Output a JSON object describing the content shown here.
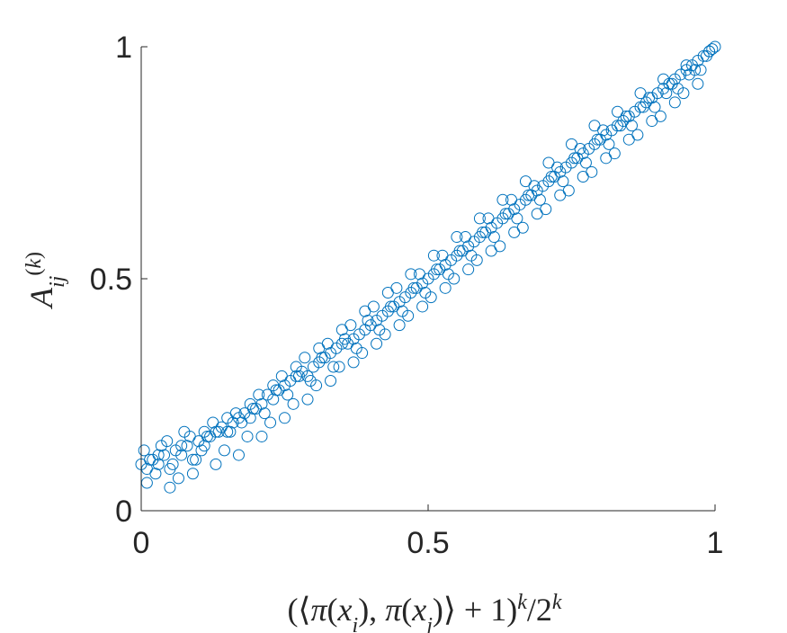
{
  "chart_data": {
    "type": "scatter",
    "title": "",
    "xlabel": "(⟨π(x_i), π(x_j)⟩ + 1)^k / 2^k",
    "ylabel": "A_ij^(k)",
    "xlim": [
      0,
      1
    ],
    "ylim": [
      0,
      1
    ],
    "xticks": [
      0,
      0.5,
      1
    ],
    "yticks": [
      0,
      0.5,
      1
    ],
    "xtick_labels": [
      "0",
      "0.5",
      "1"
    ],
    "ytick_labels": [
      "0",
      "0.5",
      "1"
    ],
    "grid": false,
    "legend": "none",
    "marker": "open-circle",
    "color": "#0072BD",
    "series": [
      {
        "x": [
          0.0,
          0.01,
          0.02,
          0.03,
          0.04,
          0.05,
          0.06,
          0.07,
          0.08,
          0.09,
          0.1,
          0.11,
          0.12,
          0.13,
          0.14,
          0.15,
          0.16,
          0.17,
          0.18,
          0.19,
          0.2,
          0.21,
          0.22,
          0.23,
          0.24,
          0.25,
          0.26,
          0.27,
          0.28,
          0.29,
          0.3,
          0.31,
          0.32,
          0.33,
          0.34,
          0.35,
          0.36,
          0.37,
          0.38,
          0.39,
          0.4,
          0.41,
          0.42,
          0.43,
          0.44,
          0.45,
          0.46,
          0.47,
          0.48,
          0.49,
          0.5,
          0.51,
          0.52,
          0.53,
          0.54,
          0.55,
          0.56,
          0.57,
          0.58,
          0.59,
          0.6,
          0.61,
          0.62,
          0.63,
          0.64,
          0.65,
          0.66,
          0.67,
          0.68,
          0.69,
          0.7,
          0.71,
          0.72,
          0.73,
          0.74,
          0.75,
          0.76,
          0.77,
          0.78,
          0.79,
          0.8,
          0.81,
          0.82,
          0.83,
          0.84,
          0.85,
          0.86,
          0.87,
          0.88,
          0.89,
          0.9,
          0.91,
          0.92,
          0.93,
          0.94,
          0.95,
          0.96,
          0.97,
          0.98,
          0.99,
          1.0,
          0.005,
          0.025,
          0.045,
          0.065,
          0.085,
          0.105,
          0.125,
          0.145,
          0.165,
          0.185,
          0.205,
          0.225,
          0.245,
          0.265,
          0.285,
          0.305,
          0.325,
          0.345,
          0.365,
          0.385,
          0.405,
          0.425,
          0.445,
          0.465,
          0.485,
          0.505,
          0.525,
          0.545,
          0.565,
          0.585,
          0.605,
          0.625,
          0.645,
          0.665,
          0.685,
          0.705,
          0.725,
          0.745,
          0.765,
          0.785,
          0.805,
          0.825,
          0.845,
          0.865,
          0.885,
          0.905,
          0.925,
          0.945,
          0.965,
          0.985,
          0.01,
          0.03,
          0.05,
          0.07,
          0.09,
          0.11,
          0.13,
          0.15,
          0.17,
          0.19,
          0.21,
          0.23,
          0.25,
          0.27,
          0.29,
          0.31,
          0.33,
          0.35,
          0.37,
          0.39,
          0.41,
          0.43,
          0.45,
          0.47,
          0.49,
          0.51,
          0.53,
          0.55,
          0.57,
          0.59,
          0.61,
          0.63,
          0.65,
          0.67,
          0.69,
          0.71,
          0.73,
          0.75,
          0.77,
          0.79,
          0.81,
          0.83,
          0.85,
          0.87,
          0.89,
          0.91,
          0.93,
          0.95,
          0.97,
          0.99,
          0.015,
          0.035,
          0.055,
          0.075,
          0.095,
          0.115,
          0.135,
          0.155,
          0.175,
          0.195,
          0.215,
          0.235,
          0.255,
          0.275,
          0.295,
          0.315,
          0.335,
          0.355,
          0.375,
          0.395,
          0.415,
          0.435,
          0.455,
          0.475,
          0.495,
          0.515,
          0.535,
          0.555,
          0.575,
          0.595,
          0.615,
          0.635,
          0.655,
          0.675,
          0.695,
          0.715,
          0.735,
          0.755,
          0.775,
          0.795,
          0.815,
          0.835,
          0.855,
          0.875,
          0.895,
          0.915,
          0.935,
          0.955,
          0.975,
          0.995
        ],
        "y": [
          0.1,
          0.09,
          0.11,
          0.1,
          0.12,
          0.09,
          0.13,
          0.12,
          0.14,
          0.11,
          0.15,
          0.14,
          0.16,
          0.17,
          0.18,
          0.17,
          0.19,
          0.2,
          0.21,
          0.2,
          0.22,
          0.23,
          0.25,
          0.24,
          0.26,
          0.27,
          0.28,
          0.29,
          0.3,
          0.29,
          0.31,
          0.32,
          0.33,
          0.34,
          0.35,
          0.36,
          0.36,
          0.37,
          0.38,
          0.39,
          0.4,
          0.41,
          0.42,
          0.43,
          0.44,
          0.45,
          0.46,
          0.47,
          0.48,
          0.49,
          0.5,
          0.51,
          0.52,
          0.53,
          0.54,
          0.55,
          0.56,
          0.57,
          0.58,
          0.59,
          0.6,
          0.61,
          0.62,
          0.63,
          0.64,
          0.65,
          0.66,
          0.67,
          0.68,
          0.69,
          0.7,
          0.71,
          0.72,
          0.73,
          0.74,
          0.75,
          0.76,
          0.77,
          0.78,
          0.79,
          0.8,
          0.81,
          0.82,
          0.83,
          0.84,
          0.85,
          0.86,
          0.87,
          0.88,
          0.89,
          0.9,
          0.91,
          0.92,
          0.93,
          0.94,
          0.95,
          0.96,
          0.97,
          0.98,
          0.99,
          1.0,
          0.13,
          0.08,
          0.15,
          0.07,
          0.16,
          0.13,
          0.19,
          0.13,
          0.21,
          0.16,
          0.25,
          0.19,
          0.29,
          0.23,
          0.33,
          0.27,
          0.36,
          0.31,
          0.4,
          0.34,
          0.44,
          0.38,
          0.48,
          0.42,
          0.51,
          0.46,
          0.55,
          0.5,
          0.59,
          0.54,
          0.63,
          0.57,
          0.67,
          0.61,
          0.7,
          0.65,
          0.74,
          0.69,
          0.78,
          0.73,
          0.82,
          0.77,
          0.85,
          0.81,
          0.89,
          0.85,
          0.92,
          0.9,
          0.95,
          0.98,
          0.06,
          0.12,
          0.05,
          0.14,
          0.08,
          0.17,
          0.1,
          0.2,
          0.12,
          0.23,
          0.16,
          0.27,
          0.2,
          0.31,
          0.24,
          0.35,
          0.28,
          0.39,
          0.32,
          0.43,
          0.36,
          0.47,
          0.4,
          0.51,
          0.44,
          0.55,
          0.48,
          0.59,
          0.52,
          0.63,
          0.56,
          0.67,
          0.6,
          0.71,
          0.64,
          0.75,
          0.68,
          0.79,
          0.72,
          0.83,
          0.76,
          0.86,
          0.8,
          0.9,
          0.84,
          0.93,
          0.88,
          0.96,
          0.92,
          0.99,
          0.11,
          0.14,
          0.1,
          0.17,
          0.11,
          0.16,
          0.17,
          0.17,
          0.19,
          0.22,
          0.21,
          0.26,
          0.25,
          0.29,
          0.28,
          0.33,
          0.31,
          0.37,
          0.35,
          0.41,
          0.39,
          0.44,
          0.43,
          0.48,
          0.47,
          0.52,
          0.51,
          0.56,
          0.55,
          0.6,
          0.59,
          0.64,
          0.63,
          0.68,
          0.67,
          0.72,
          0.71,
          0.76,
          0.75,
          0.8,
          0.79,
          0.83,
          0.83,
          0.87,
          0.87,
          0.9,
          0.91,
          0.94,
          0.95,
          0.995
        ]
      }
    ]
  }
}
